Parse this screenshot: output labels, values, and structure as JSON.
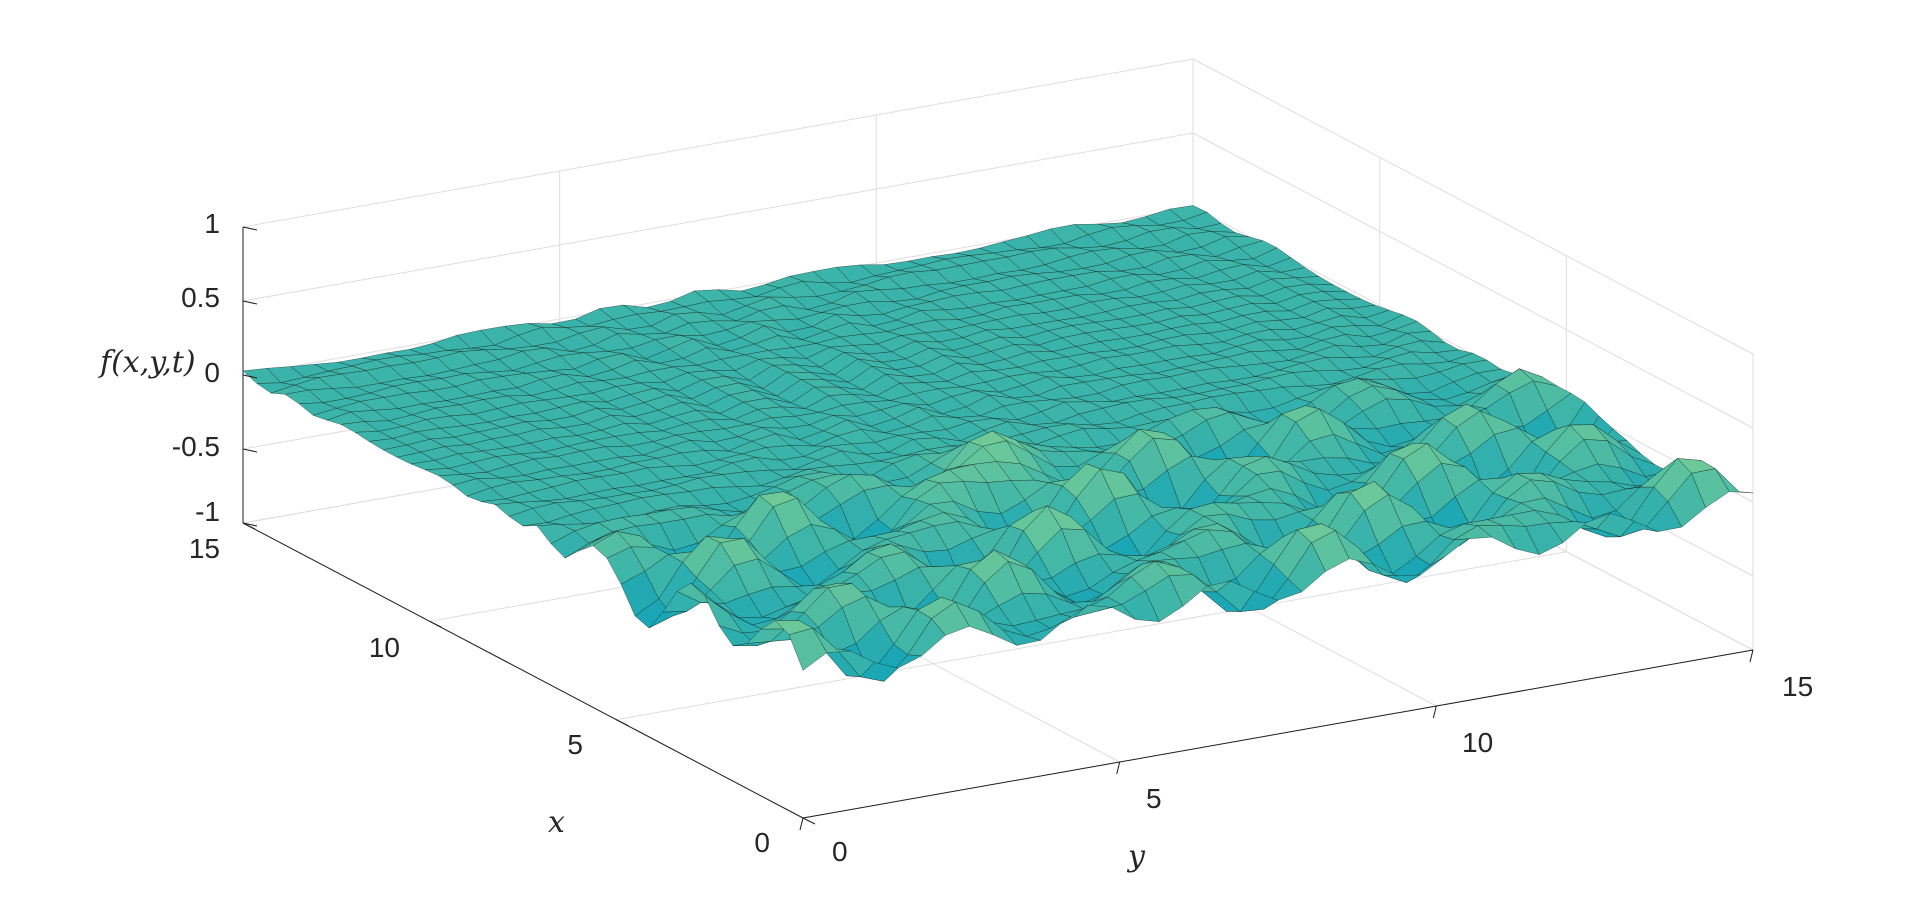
{
  "chart_data": {
    "type": "surface",
    "title": "",
    "xlabel": "x",
    "ylabel": "y",
    "zlabel": "f(x,y,t)",
    "xlim": [
      0,
      15
    ],
    "ylim": [
      0,
      15
    ],
    "zlim": [
      -1,
      1
    ],
    "x_ticks": [
      "0",
      "5",
      "10",
      "15"
    ],
    "y_ticks": [
      "0",
      "5",
      "10",
      "15"
    ],
    "z_ticks": [
      "1",
      "0.5",
      "0",
      "-0.5",
      "-1"
    ],
    "grid": true,
    "colormap": "parula",
    "surface_color_low": "#1aa6b5",
    "surface_color_high": "#8ad58f",
    "mesh_edge_color": "#000000",
    "surface_description_values": {
      "flat_region_value": 0,
      "wave_peak_approx": 0.3,
      "wave_trough_approx": -0.15
    }
  }
}
